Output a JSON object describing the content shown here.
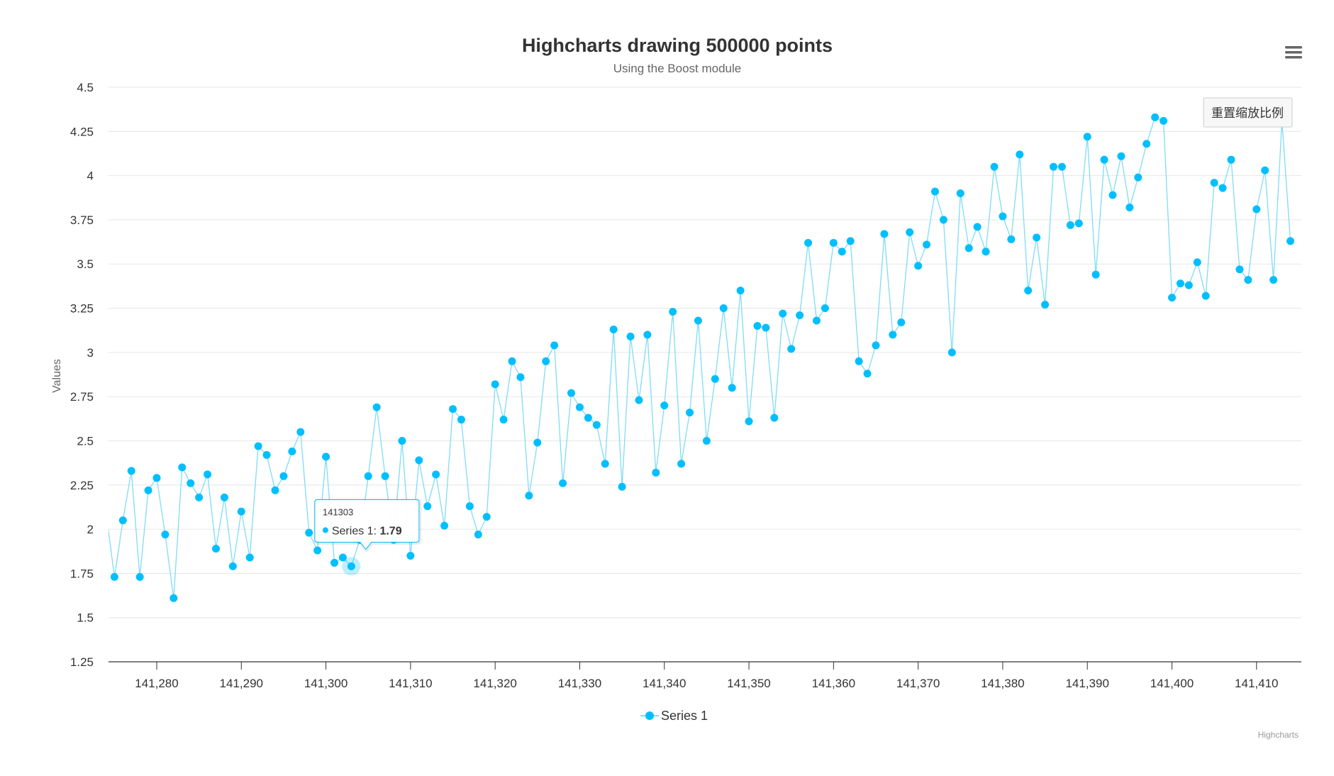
{
  "colors": {
    "series": "#00bfff",
    "line": "#7fdcf5",
    "grid": "#e6e6e6",
    "axis": "#333333"
  },
  "menu_icon": "hamburger-menu-icon",
  "reset_zoom_label": "重置缩放比例",
  "credits": "Highcharts",
  "tooltip": {
    "header": "141303",
    "series_label": "Series 1: ",
    "value": "1.79"
  },
  "chart_data": {
    "type": "line",
    "title": "Highcharts drawing 500000 points",
    "subtitle": "Using the Boost module",
    "ylabel": "Values",
    "xlabel": "",
    "xlim": [
      141274.3,
      141415.3
    ],
    "ylim": [
      1.25,
      4.5
    ],
    "yticks": [
      1.25,
      1.5,
      1.75,
      2,
      2.25,
      2.5,
      2.75,
      3,
      3.25,
      3.5,
      3.75,
      4,
      4.25,
      4.5
    ],
    "ytick_labels": [
      "1.25",
      "1.5",
      "1.75",
      "2",
      "2.25",
      "2.5",
      "2.75",
      "3",
      "3.25",
      "3.5",
      "3.75",
      "4",
      "4.25",
      "4.5"
    ],
    "xticks": [
      141280,
      141290,
      141300,
      141310,
      141320,
      141330,
      141340,
      141350,
      141360,
      141370,
      141380,
      141390,
      141400,
      141410
    ],
    "xtick_labels": [
      "141,280",
      "141,290",
      "141,300",
      "141,310",
      "141,320",
      "141,330",
      "141,340",
      "141,350",
      "141,360",
      "141,370",
      "141,380",
      "141,390",
      "141,400",
      "141,410"
    ],
    "grid": true,
    "legend": "bottom-center",
    "highlight_x": 141303,
    "series": [
      {
        "name": "Series 1",
        "x_start": 141274,
        "values": [
          2.1,
          1.73,
          2.05,
          2.33,
          1.73,
          2.22,
          2.29,
          1.97,
          1.61,
          2.35,
          2.26,
          2.18,
          2.31,
          1.89,
          2.18,
          1.79,
          2.1,
          1.84,
          2.47,
          2.42,
          2.22,
          2.3,
          2.44,
          2.55,
          1.98,
          1.88,
          2.41,
          1.81,
          1.84,
          1.79,
          1.94,
          2.3,
          2.69,
          2.3,
          1.94,
          2.5,
          1.85,
          2.39,
          2.13,
          2.31,
          2.02,
          2.68,
          2.62,
          2.13,
          1.97,
          2.07,
          2.82,
          2.62,
          2.95,
          2.86,
          2.19,
          2.49,
          2.95,
          3.04,
          2.26,
          2.77,
          2.69,
          2.63,
          2.59,
          2.37,
          3.13,
          2.24,
          3.09,
          2.73,
          3.1,
          2.32,
          2.7,
          3.23,
          2.37,
          2.66,
          3.18,
          2.5,
          2.85,
          3.25,
          2.8,
          3.35,
          2.61,
          3.15,
          3.14,
          2.63,
          3.22,
          3.02,
          3.21,
          3.62,
          3.18,
          3.25,
          3.62,
          3.57,
          3.63,
          2.95,
          2.88,
          3.04,
          3.67,
          3.1,
          3.17,
          3.68,
          3.49,
          3.61,
          3.91,
          3.75,
          3.0,
          3.9,
          3.59,
          3.71,
          3.57,
          4.05,
          3.77,
          3.64,
          4.12,
          3.35,
          3.65,
          3.27,
          4.05,
          4.05,
          3.72,
          3.73,
          4.22,
          3.44,
          4.09,
          3.89,
          4.11,
          3.82,
          3.99,
          4.18,
          4.33,
          4.31,
          3.31,
          3.39,
          3.38,
          3.51,
          3.32,
          3.96,
          3.93,
          4.09,
          3.47,
          3.41,
          3.81,
          4.03,
          3.41,
          4.31,
          3.63
        ]
      }
    ]
  }
}
